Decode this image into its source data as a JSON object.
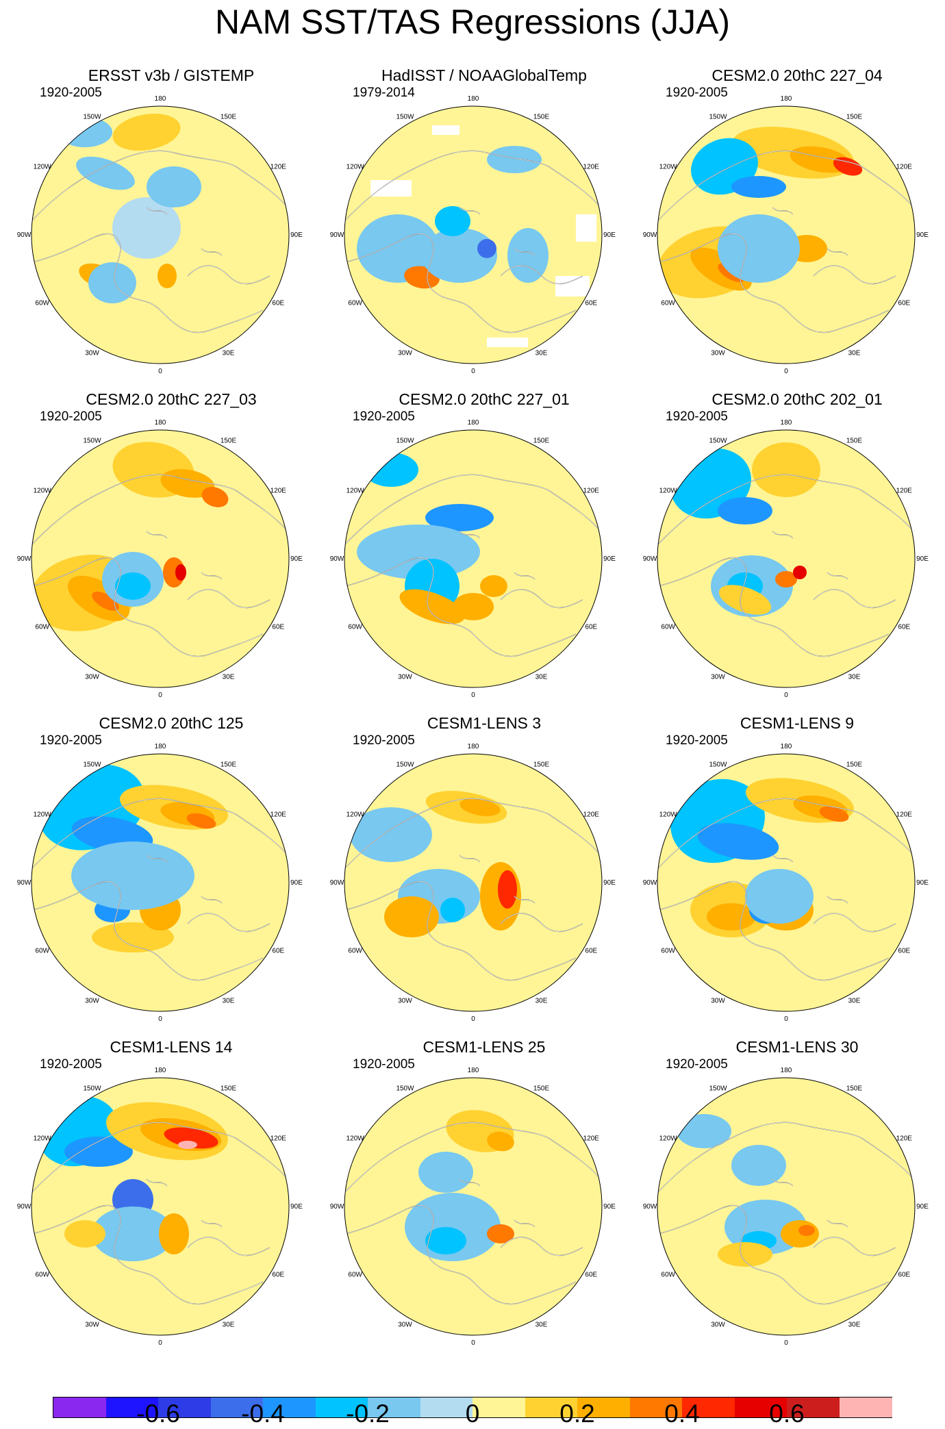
{
  "figure": {
    "title": "NAM SST/TAS Regressions (JJA)",
    "longitude_labels": [
      "180",
      "150E",
      "120E",
      "90E",
      "60E",
      "30E",
      "0",
      "30W",
      "60W",
      "90W",
      "120W",
      "150W"
    ]
  },
  "panels": [
    {
      "title": "ERSST v3b / GISTEMP",
      "period": "1920-2005"
    },
    {
      "title": "HadISST / NOAAGlobalTemp",
      "period": "1979-2014"
    },
    {
      "title": "CESM2.0 20thC 227_04",
      "period": "1920-2005"
    },
    {
      "title": "CESM2.0 20thC 227_03",
      "period": "1920-2005"
    },
    {
      "title": "CESM2.0 20thC 227_01",
      "period": "1920-2005"
    },
    {
      "title": "CESM2.0 20thC 202_01",
      "period": "1920-2005"
    },
    {
      "title": "CESM2.0 20thC 125",
      "period": "1920-2005"
    },
    {
      "title": "CESM1-LENS 3",
      "period": "1920-2005"
    },
    {
      "title": "CESM1-LENS 9",
      "period": "1920-2005"
    },
    {
      "title": "CESM1-LENS 14",
      "period": "1920-2005"
    },
    {
      "title": "CESM1-LENS 25",
      "period": "1920-2005"
    },
    {
      "title": "CESM1-LENS 30",
      "period": "1920-2005"
    }
  ],
  "colorbar": {
    "colors": [
      "#8b28f0",
      "#1e14ff",
      "#2d3ce6",
      "#3c6eeb",
      "#1e96ff",
      "#00c3ff",
      "#78c8f0",
      "#b4dcf0",
      "#fff596",
      "#ffd232",
      "#ffaf00",
      "#ff7800",
      "#ff2800",
      "#e60000",
      "#cd1e1e",
      "#ffb4b4"
    ],
    "tick_labels": [
      "-0.6",
      "-0.4",
      "-0.2",
      "0",
      "0.2",
      "0.4",
      "0.6"
    ]
  },
  "palette": {
    "land_line": "#777777",
    "coast_line": "#ffffff",
    "missing": "#ffffff"
  }
}
